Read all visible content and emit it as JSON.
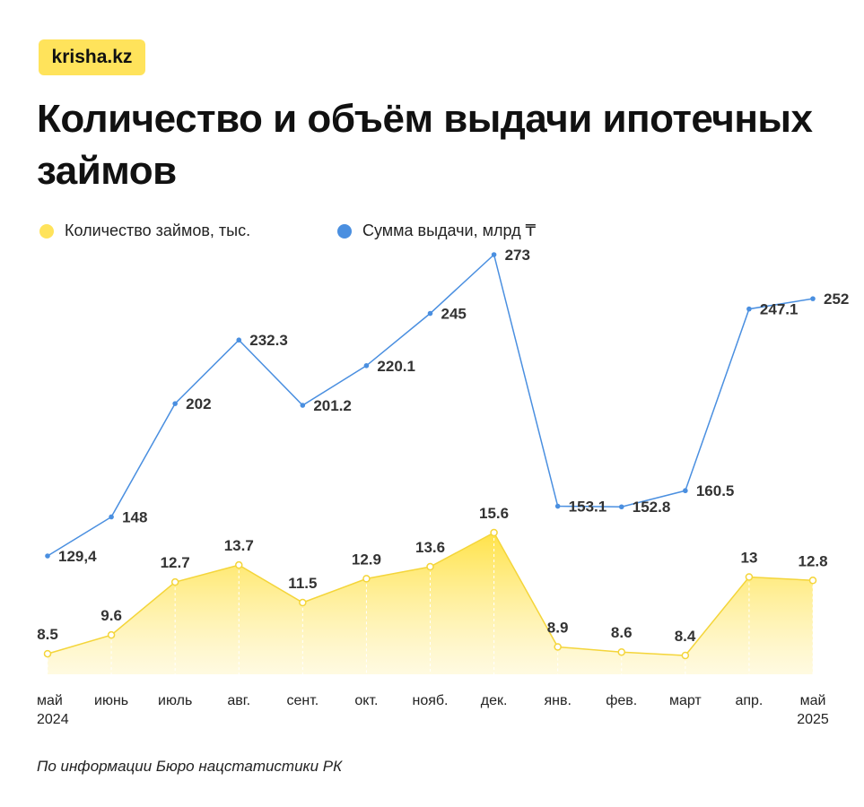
{
  "brand": {
    "logo_text": "krisha.kz"
  },
  "title": "Количество и объём выдачи ипотечных займов",
  "source": "По информации Бюро нацстатистики РК",
  "colors": {
    "count": "#FFE35B",
    "count_stroke": "#F4D53A",
    "sum": "#4A8FE0",
    "logo_bg": "#FFE35B"
  },
  "chart_data": {
    "type": "line",
    "categories": [
      "май\n2024",
      "июнь",
      "июль",
      "авг.",
      "сент.",
      "окт.",
      "нояб.",
      "дек.",
      "янв.",
      "фев.",
      "март",
      "апр.",
      "май\n2025"
    ],
    "series": [
      {
        "name": "Сумма выдачи, млрд ₸",
        "values": [
          129.4,
          148,
          202,
          232.3,
          201.2,
          220.1,
          245,
          273,
          153.1,
          152.8,
          160.5,
          247.1,
          252
        ],
        "labels": [
          "129,4",
          "148",
          "202",
          "232.3",
          "201.2",
          "220.1",
          "245",
          "273",
          "153.1",
          "152.8",
          "160.5",
          "247.1",
          "252"
        ],
        "style": "line",
        "color": "#4A8FE0"
      },
      {
        "name": "Количество займов, тыс.",
        "values": [
          8.5,
          9.6,
          12.7,
          13.7,
          11.5,
          12.9,
          13.6,
          15.6,
          8.9,
          8.6,
          8.4,
          13,
          12.8
        ],
        "labels": [
          "8.5",
          "9.6",
          "12.7",
          "13.7",
          "11.5",
          "12.9",
          "13.6",
          "15.6",
          "8.9",
          "8.6",
          "8.4",
          "13",
          "12.8"
        ],
        "style": "area",
        "color": "#FFE35B"
      }
    ],
    "legend_position": "top-left",
    "grid": false,
    "y_axis_visible": false
  }
}
